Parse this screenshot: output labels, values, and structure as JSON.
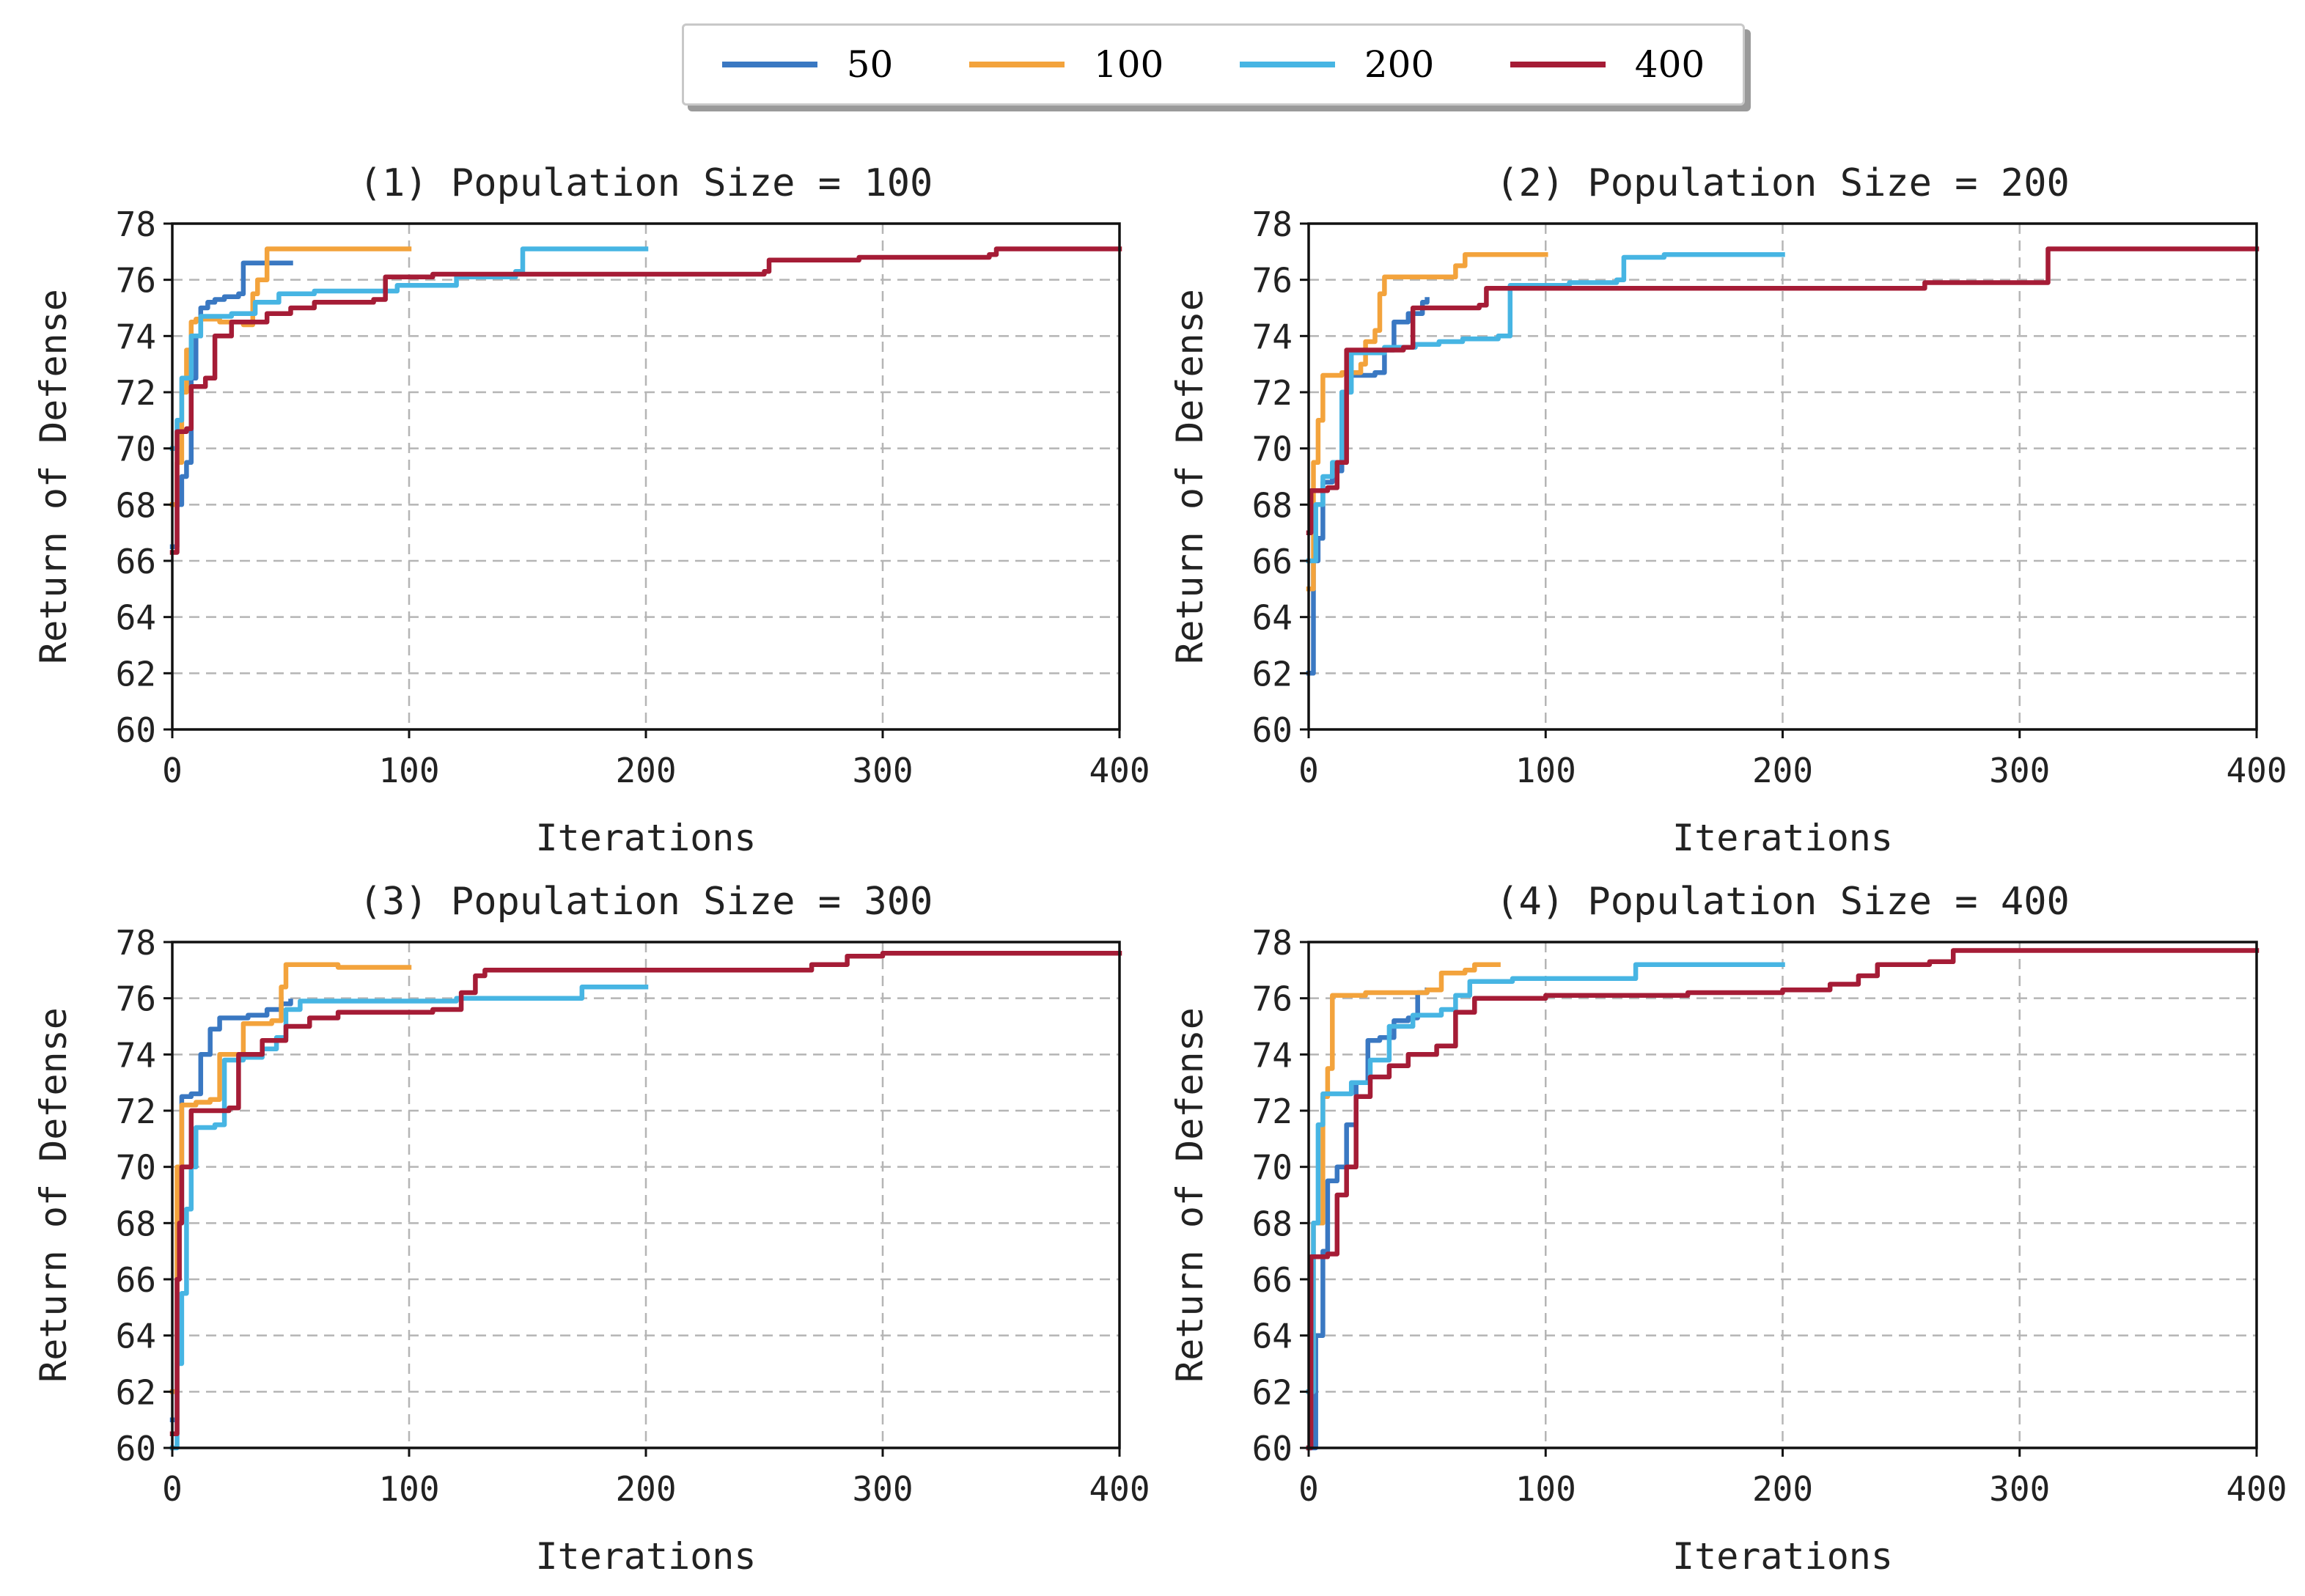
{
  "legend": {
    "items": [
      {
        "label": "50",
        "color": "#3a78c2"
      },
      {
        "label": "100",
        "color": "#f3a33c"
      },
      {
        "label": "200",
        "color": "#47b5e3"
      },
      {
        "label": "400",
        "color": "#a51c36"
      }
    ]
  },
  "chart_data": [
    {
      "type": "line",
      "title": "(1) Population Size = 100",
      "xlabel": "Iterations",
      "ylabel": "Return of Defense",
      "xlim": [
        0,
        400
      ],
      "ylim": [
        60,
        78
      ],
      "xticks": [
        0,
        100,
        200,
        300,
        400
      ],
      "yticks": [
        60,
        62,
        64,
        66,
        68,
        70,
        72,
        74,
        76,
        78
      ],
      "grid": true,
      "series": [
        {
          "name": "50",
          "color": "#3a78c2",
          "points": [
            [
              0,
              66.5
            ],
            [
              2,
              68
            ],
            [
              4,
              69
            ],
            [
              6,
              69.5
            ],
            [
              8,
              72.5
            ],
            [
              10,
              74
            ],
            [
              12,
              75
            ],
            [
              15,
              75.2
            ],
            [
              18,
              75.3
            ],
            [
              22,
              75.4
            ],
            [
              28,
              75.5
            ],
            [
              30,
              76.6
            ],
            [
              50,
              76.6
            ]
          ]
        },
        {
          "name": "100",
          "color": "#f3a33c",
          "points": [
            [
              0,
              68
            ],
            [
              2,
              69.5
            ],
            [
              4,
              72
            ],
            [
              6,
              73.5
            ],
            [
              8,
              74.5
            ],
            [
              10,
              74.6
            ],
            [
              20,
              74.5
            ],
            [
              30,
              74.4
            ],
            [
              34,
              75.5
            ],
            [
              36,
              76
            ],
            [
              40,
              77.1
            ],
            [
              100,
              77.1
            ]
          ]
        },
        {
          "name": "200",
          "color": "#47b5e3",
          "points": [
            [
              0,
              70
            ],
            [
              2,
              71
            ],
            [
              4,
              72.5
            ],
            [
              8,
              74
            ],
            [
              12,
              74.7
            ],
            [
              25,
              74.8
            ],
            [
              35,
              75.2
            ],
            [
              45,
              75.5
            ],
            [
              60,
              75.6
            ],
            [
              95,
              75.8
            ],
            [
              120,
              76.1
            ],
            [
              145,
              76.3
            ],
            [
              148,
              77.1
            ],
            [
              200,
              77.1
            ]
          ]
        },
        {
          "name": "400",
          "color": "#a51c36",
          "points": [
            [
              0,
              66.3
            ],
            [
              2,
              70.6
            ],
            [
              6,
              70.7
            ],
            [
              8,
              72.2
            ],
            [
              14,
              72.5
            ],
            [
              18,
              74
            ],
            [
              25,
              74.5
            ],
            [
              40,
              74.8
            ],
            [
              50,
              75
            ],
            [
              60,
              75.2
            ],
            [
              85,
              75.3
            ],
            [
              90,
              76.1
            ],
            [
              110,
              76.2
            ],
            [
              200,
              76.2
            ],
            [
              250,
              76.3
            ],
            [
              252,
              76.7
            ],
            [
              290,
              76.8
            ],
            [
              345,
              76.9
            ],
            [
              348,
              77.1
            ],
            [
              400,
              77.1
            ]
          ]
        }
      ]
    },
    {
      "type": "line",
      "title": "(2) Population Size = 200",
      "xlabel": "Iterations",
      "ylabel": "Return of Defense",
      "xlim": [
        0,
        400
      ],
      "ylim": [
        60,
        78
      ],
      "xticks": [
        0,
        100,
        200,
        300,
        400
      ],
      "yticks": [
        60,
        62,
        64,
        66,
        68,
        70,
        72,
        74,
        76,
        78
      ],
      "grid": true,
      "series": [
        {
          "name": "50",
          "color": "#3a78c2",
          "points": [
            [
              0,
              62
            ],
            [
              2,
              66
            ],
            [
              4,
              66.8
            ],
            [
              6,
              68.8
            ],
            [
              10,
              69.2
            ],
            [
              14,
              72
            ],
            [
              16,
              72.6
            ],
            [
              28,
              72.7
            ],
            [
              32,
              73.5
            ],
            [
              36,
              74.5
            ],
            [
              42,
              74.8
            ],
            [
              48,
              75.2
            ],
            [
              50,
              75.3
            ]
          ]
        },
        {
          "name": "100",
          "color": "#f3a33c",
          "points": [
            [
              0,
              65
            ],
            [
              2,
              69.5
            ],
            [
              4,
              71
            ],
            [
              6,
              72.6
            ],
            [
              14,
              72.7
            ],
            [
              22,
              73
            ],
            [
              24,
              73.8
            ],
            [
              28,
              74.2
            ],
            [
              30,
              75.5
            ],
            [
              32,
              76.1
            ],
            [
              60,
              76.1
            ],
            [
              62,
              76.5
            ],
            [
              66,
              76.9
            ],
            [
              100,
              76.9
            ]
          ]
        },
        {
          "name": "200",
          "color": "#47b5e3",
          "points": [
            [
              0,
              66
            ],
            [
              3,
              68
            ],
            [
              6,
              69
            ],
            [
              10,
              69.5
            ],
            [
              14,
              72
            ],
            [
              18,
              73.4
            ],
            [
              32,
              73.6
            ],
            [
              45,
              73.7
            ],
            [
              55,
              73.8
            ],
            [
              65,
              73.9
            ],
            [
              80,
              74
            ],
            [
              85,
              75.8
            ],
            [
              110,
              75.9
            ],
            [
              130,
              76
            ],
            [
              133,
              76.8
            ],
            [
              150,
              76.9
            ],
            [
              200,
              76.9
            ]
          ]
        },
        {
          "name": "400",
          "color": "#a51c36",
          "points": [
            [
              0,
              67
            ],
            [
              1,
              68.5
            ],
            [
              8,
              68.6
            ],
            [
              12,
              69.5
            ],
            [
              16,
              73.5
            ],
            [
              40,
              73.6
            ],
            [
              44,
              75
            ],
            [
              72,
              75.1
            ],
            [
              75,
              75.7
            ],
            [
              150,
              75.7
            ],
            [
              260,
              75.9
            ],
            [
              309,
              75.9
            ],
            [
              312,
              77.1
            ],
            [
              400,
              77.1
            ]
          ]
        }
      ]
    },
    {
      "type": "line",
      "title": "(3) Population Size = 300",
      "xlabel": "Iterations",
      "ylabel": "Return of Defense",
      "xlim": [
        0,
        400
      ],
      "ylim": [
        60,
        78
      ],
      "xticks": [
        0,
        100,
        200,
        300,
        400
      ],
      "yticks": [
        60,
        62,
        64,
        66,
        68,
        70,
        72,
        74,
        76,
        78
      ],
      "grid": true,
      "series": [
        {
          "name": "50",
          "color": "#3a78c2",
          "points": [
            [
              0,
              61
            ],
            [
              2,
              68
            ],
            [
              4,
              72.5
            ],
            [
              8,
              72.6
            ],
            [
              12,
              74
            ],
            [
              16,
              74.9
            ],
            [
              20,
              75.3
            ],
            [
              32,
              75.4
            ],
            [
              40,
              75.6
            ],
            [
              46,
              75.8
            ],
            [
              50,
              75.9
            ]
          ]
        },
        {
          "name": "100",
          "color": "#f3a33c",
          "points": [
            [
              0,
              62
            ],
            [
              2,
              70
            ],
            [
              4,
              72.2
            ],
            [
              10,
              72.3
            ],
            [
              16,
              72.4
            ],
            [
              20,
              74
            ],
            [
              30,
              75.1
            ],
            [
              42,
              75.2
            ],
            [
              46,
              76.4
            ],
            [
              48,
              77.2
            ],
            [
              70,
              77.1
            ],
            [
              100,
              77.1
            ]
          ]
        },
        {
          "name": "200",
          "color": "#47b5e3",
          "points": [
            [
              0,
              60
            ],
            [
              2,
              63
            ],
            [
              4,
              65.5
            ],
            [
              6,
              68.5
            ],
            [
              8,
              70
            ],
            [
              10,
              71.4
            ],
            [
              18,
              71.5
            ],
            [
              22,
              73.8
            ],
            [
              30,
              73.9
            ],
            [
              38,
              74.2
            ],
            [
              44,
              74.6
            ],
            [
              48,
              75.6
            ],
            [
              54,
              75.9
            ],
            [
              80,
              75.9
            ],
            [
              120,
              76
            ],
            [
              170,
              76
            ],
            [
              173,
              76.4
            ],
            [
              200,
              76.4
            ]
          ]
        },
        {
          "name": "400",
          "color": "#a51c36",
          "points": [
            [
              0,
              60.5
            ],
            [
              2,
              66
            ],
            [
              3,
              68
            ],
            [
              4,
              70
            ],
            [
              8,
              72
            ],
            [
              24,
              72.1
            ],
            [
              28,
              74
            ],
            [
              38,
              74.5
            ],
            [
              48,
              75
            ],
            [
              58,
              75.3
            ],
            [
              70,
              75.5
            ],
            [
              110,
              75.6
            ],
            [
              122,
              76.2
            ],
            [
              128,
              76.8
            ],
            [
              132,
              77
            ],
            [
              200,
              77
            ],
            [
              270,
              77.2
            ],
            [
              285,
              77.5
            ],
            [
              300,
              77.6
            ],
            [
              400,
              77.6
            ]
          ]
        }
      ]
    },
    {
      "type": "line",
      "title": "(4) Population Size = 400",
      "xlabel": "Iterations",
      "ylabel": "Return of Defense",
      "xlim": [
        0,
        400
      ],
      "ylim": [
        60,
        78
      ],
      "xticks": [
        0,
        100,
        200,
        300,
        400
      ],
      "yticks": [
        60,
        62,
        64,
        66,
        68,
        70,
        72,
        74,
        76,
        78
      ],
      "grid": true,
      "series": [
        {
          "name": "50",
          "color": "#3a78c2",
          "points": [
            [
              0,
              60
            ],
            [
              3,
              64
            ],
            [
              6,
              67
            ],
            [
              8,
              69.5
            ],
            [
              12,
              70
            ],
            [
              16,
              71.5
            ],
            [
              20,
              73
            ],
            [
              25,
              74.5
            ],
            [
              30,
              74.6
            ],
            [
              36,
              75.2
            ],
            [
              42,
              75.3
            ],
            [
              46,
              76.2
            ],
            [
              50,
              76.3
            ]
          ]
        },
        {
          "name": "100",
          "color": "#f3a33c",
          "points": [
            [
              0,
              62
            ],
            [
              2,
              68
            ],
            [
              6,
              72.5
            ],
            [
              8,
              73.5
            ],
            [
              10,
              76.1
            ],
            [
              24,
              76.2
            ],
            [
              50,
              76.3
            ],
            [
              56,
              76.9
            ],
            [
              66,
              77
            ],
            [
              70,
              77.2
            ],
            [
              80,
              77.2
            ]
          ]
        },
        {
          "name": "200",
          "color": "#47b5e3",
          "points": [
            [
              0,
              62
            ],
            [
              2,
              68
            ],
            [
              4,
              71.5
            ],
            [
              6,
              72.6
            ],
            [
              18,
              73
            ],
            [
              26,
              73.8
            ],
            [
              34,
              75
            ],
            [
              44,
              75.4
            ],
            [
              56,
              75.6
            ],
            [
              62,
              76.1
            ],
            [
              68,
              76.6
            ],
            [
              86,
              76.7
            ],
            [
              125,
              76.7
            ],
            [
              138,
              77.2
            ],
            [
              200,
              77.2
            ]
          ]
        },
        {
          "name": "400",
          "color": "#a51c36",
          "points": [
            [
              0,
              60
            ],
            [
              1,
              66.8
            ],
            [
              8,
              66.9
            ],
            [
              12,
              69
            ],
            [
              16,
              70
            ],
            [
              20,
              72.5
            ],
            [
              26,
              73.2
            ],
            [
              34,
              73.6
            ],
            [
              42,
              74
            ],
            [
              54,
              74.3
            ],
            [
              62,
              75.5
            ],
            [
              70,
              76
            ],
            [
              100,
              76.1
            ],
            [
              160,
              76.2
            ],
            [
              200,
              76.3
            ],
            [
              220,
              76.5
            ],
            [
              232,
              76.8
            ],
            [
              240,
              77.2
            ],
            [
              262,
              77.3
            ],
            [
              272,
              77.7
            ],
            [
              400,
              77.7
            ]
          ]
        }
      ]
    }
  ]
}
